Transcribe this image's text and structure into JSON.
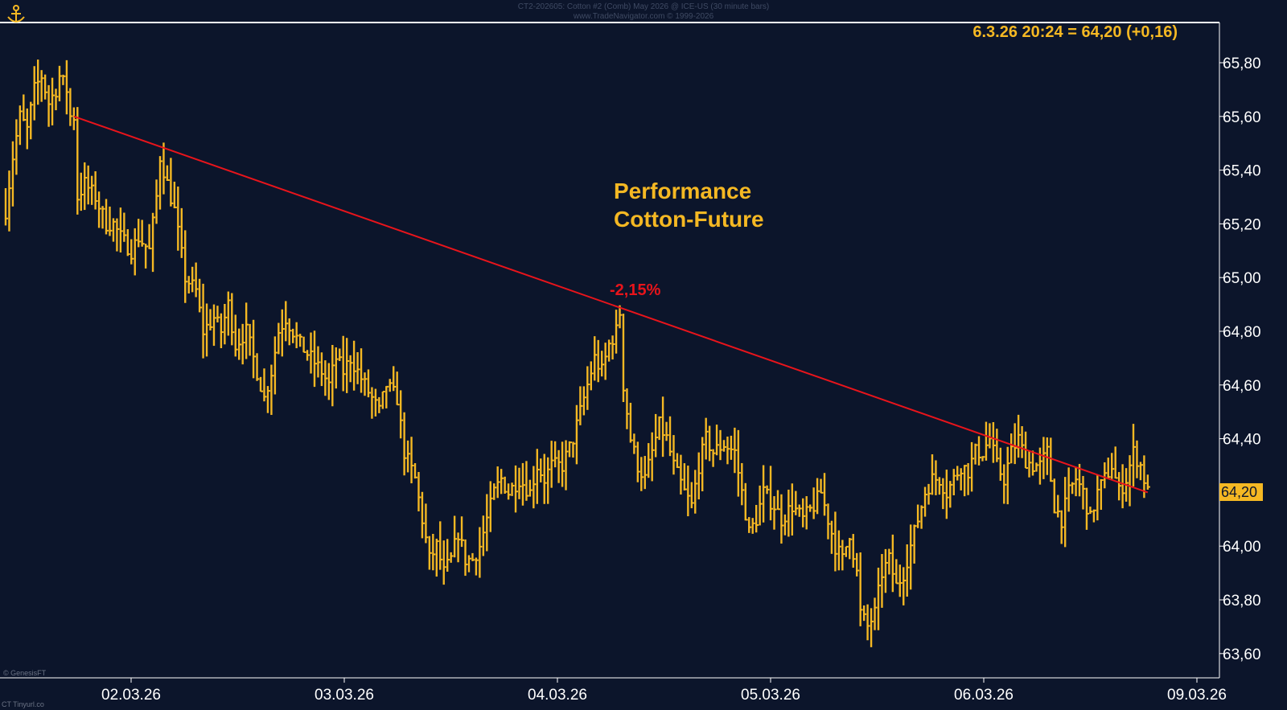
{
  "header": {
    "line1": "CT2-202605:  Cotton #2 (Comb) May 2026 @ ICE-US  (30 minute bars)",
    "line2": "www.TradeNavigator.com © 1999-2026"
  },
  "quote_text": "6.3.26 20:24 = 64,20 (+0,16)",
  "title_lines": [
    "Performance",
    "Cotton-Future"
  ],
  "annotation_pct": "-2,15%",
  "last_price_tag": "64,20",
  "credits": {
    "bottom_left": "© GenesisFT",
    "footer": "CT  Tinyurl.co"
  },
  "colors": {
    "background": "#0c152b",
    "bars": "#f5b823",
    "trendline": "#e8141b",
    "axis": "#ffffff",
    "text": "#ffffff"
  },
  "icons": {
    "logo": "ship-anchor-logo-icon"
  },
  "chart_data": {
    "type": "ohlc",
    "title": "Performance Cotton-Future",
    "ylim": [
      63.5,
      65.95
    ],
    "y_ticks": [
      "65,80",
      "65,60",
      "65,40",
      "65,20",
      "65,00",
      "64,80",
      "64,60",
      "64,40",
      "64,20",
      "64,00",
      "63,80",
      "63,60"
    ],
    "y_tick_values": [
      65.8,
      65.6,
      65.4,
      65.2,
      65.0,
      64.8,
      64.6,
      64.4,
      64.2,
      64.0,
      63.8,
      63.6
    ],
    "x_ticks": [
      "02.03.26",
      "03.03.26",
      "04.03.26",
      "05.03.26",
      "06.03.26",
      "09.03.26"
    ],
    "bars_per_day": 46,
    "days_shown": [
      "02.03.26",
      "03.03.26",
      "04.03.26",
      "05.03.26",
      "06.03.26"
    ],
    "last_value": 64.2,
    "change": 0.16,
    "trendline": {
      "start": {
        "bar": 19,
        "value": 65.6
      },
      "end": {
        "bar": 318,
        "value": 64.2
      },
      "label": "-2,15%"
    },
    "anchors": [
      [
        0,
        65.25
      ],
      [
        2,
        65.45
      ],
      [
        4,
        65.6
      ],
      [
        6,
        65.55
      ],
      [
        8,
        65.7
      ],
      [
        10,
        65.75
      ],
      [
        12,
        65.65
      ],
      [
        14,
        65.7
      ],
      [
        15,
        65.75
      ],
      [
        17,
        65.7
      ],
      [
        18,
        65.6
      ],
      [
        19,
        65.6
      ],
      [
        20,
        65.3
      ],
      [
        22,
        65.35
      ],
      [
        25,
        65.3
      ],
      [
        28,
        65.2
      ],
      [
        30,
        65.2
      ],
      [
        32,
        65.15
      ],
      [
        35,
        65.1
      ],
      [
        37,
        65.15
      ],
      [
        40,
        65.1
      ],
      [
        42,
        65.3
      ],
      [
        43,
        65.45
      ],
      [
        45,
        65.35
      ],
      [
        47,
        65.25
      ],
      [
        50,
        65.0
      ],
      [
        53,
        64.95
      ],
      [
        55,
        64.8
      ],
      [
        58,
        64.85
      ],
      [
        60,
        64.8
      ],
      [
        62,
        64.9
      ],
      [
        64,
        64.75
      ],
      [
        67,
        64.8
      ],
      [
        70,
        64.65
      ],
      [
        72,
        64.55
      ],
      [
        74,
        64.65
      ],
      [
        76,
        64.8
      ],
      [
        78,
        64.85
      ],
      [
        80,
        64.8
      ],
      [
        82,
        64.75
      ],
      [
        85,
        64.7
      ],
      [
        88,
        64.65
      ],
      [
        90,
        64.6
      ],
      [
        92,
        64.7
      ],
      [
        94,
        64.65
      ],
      [
        96,
        64.7
      ],
      [
        98,
        64.65
      ],
      [
        100,
        64.6
      ],
      [
        102,
        64.55
      ],
      [
        104,
        64.5
      ],
      [
        106,
        64.6
      ],
      [
        109,
        64.55
      ],
      [
        111,
        64.35
      ],
      [
        114,
        64.25
      ],
      [
        116,
        64.1
      ],
      [
        118,
        63.95
      ],
      [
        120,
        64.0
      ],
      [
        122,
        63.9
      ],
      [
        124,
        63.95
      ],
      [
        126,
        64.05
      ],
      [
        128,
        63.95
      ],
      [
        130,
        63.95
      ],
      [
        132,
        64.0
      ],
      [
        134,
        64.1
      ],
      [
        136,
        64.2
      ],
      [
        138,
        64.25
      ],
      [
        140,
        64.2
      ],
      [
        143,
        64.25
      ],
      [
        146,
        64.2
      ],
      [
        148,
        64.3
      ],
      [
        150,
        64.25
      ],
      [
        152,
        64.3
      ],
      [
        155,
        64.3
      ],
      [
        158,
        64.4
      ],
      [
        160,
        64.5
      ],
      [
        162,
        64.6
      ],
      [
        164,
        64.7
      ],
      [
        166,
        64.65
      ],
      [
        168,
        64.75
      ],
      [
        170,
        64.8
      ],
      [
        171,
        64.87
      ],
      [
        172,
        64.6
      ],
      [
        174,
        64.4
      ],
      [
        176,
        64.3
      ],
      [
        178,
        64.25
      ],
      [
        180,
        64.35
      ],
      [
        182,
        64.45
      ],
      [
        184,
        64.4
      ],
      [
        186,
        64.3
      ],
      [
        189,
        64.2
      ],
      [
        191,
        64.15
      ],
      [
        193,
        64.3
      ],
      [
        195,
        64.4
      ],
      [
        197,
        64.35
      ],
      [
        200,
        64.38
      ],
      [
        203,
        64.35
      ],
      [
        205,
        64.2
      ],
      [
        207,
        64.05
      ],
      [
        209,
        64.1
      ],
      [
        211,
        64.2
      ],
      [
        214,
        64.15
      ],
      [
        216,
        64.1
      ],
      [
        219,
        64.15
      ],
      [
        222,
        64.1
      ],
      [
        225,
        64.15
      ],
      [
        227,
        64.2
      ],
      [
        229,
        64.1
      ],
      [
        231,
        64.0
      ],
      [
        233,
        63.95
      ],
      [
        235,
        64.05
      ],
      [
        237,
        63.9
      ],
      [
        238,
        63.75
      ],
      [
        240,
        63.7
      ],
      [
        242,
        63.75
      ],
      [
        244,
        63.9
      ],
      [
        246,
        63.95
      ],
      [
        248,
        63.85
      ],
      [
        250,
        63.9
      ],
      [
        252,
        64.0
      ],
      [
        254,
        64.1
      ],
      [
        256,
        64.2
      ],
      [
        258,
        64.25
      ],
      [
        260,
        64.25
      ],
      [
        262,
        64.2
      ],
      [
        264,
        64.25
      ],
      [
        266,
        64.3
      ],
      [
        268,
        64.28
      ],
      [
        270,
        64.35
      ],
      [
        272,
        64.35
      ],
      [
        274,
        64.4
      ],
      [
        276,
        64.3
      ],
      [
        278,
        64.25
      ],
      [
        280,
        64.35
      ],
      [
        282,
        64.4
      ],
      [
        284,
        64.32
      ],
      [
        286,
        64.3
      ],
      [
        288,
        64.3
      ],
      [
        290,
        64.35
      ],
      [
        292,
        64.15
      ],
      [
        294,
        64.1
      ],
      [
        296,
        64.2
      ],
      [
        298,
        64.25
      ],
      [
        300,
        64.2
      ],
      [
        302,
        64.1
      ],
      [
        304,
        64.2
      ],
      [
        306,
        64.25
      ],
      [
        308,
        64.3
      ],
      [
        310,
        64.2
      ],
      [
        312,
        64.25
      ],
      [
        314,
        64.35
      ],
      [
        316,
        64.3
      ],
      [
        318,
        64.2
      ]
    ]
  }
}
